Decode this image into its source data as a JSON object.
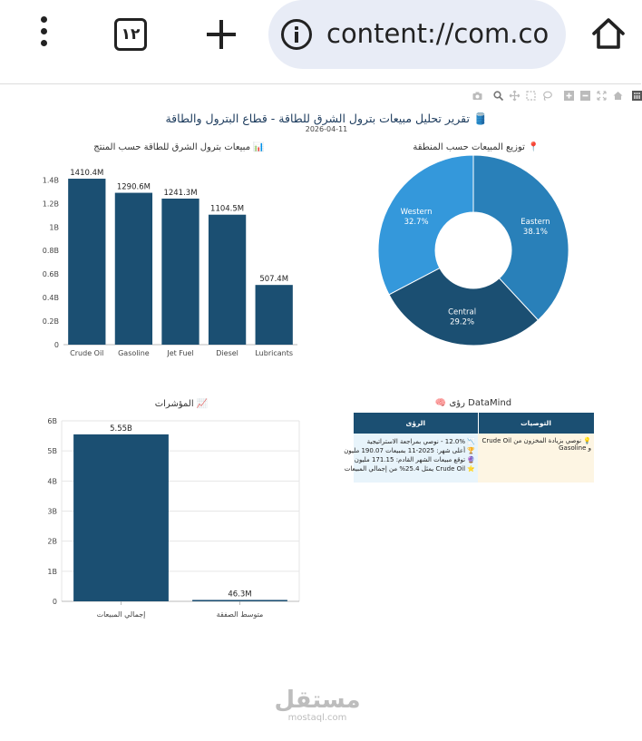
{
  "browser": {
    "tab_count": "١٢",
    "url": "content://com.co"
  },
  "report": {
    "title": "تقرير تحليل مبيعات بترول الشرق للطاقة - قطاع البترول والطاقة 🛢️",
    "date": "2026-04-11"
  },
  "charts": {
    "products": {
      "title": "مبيعات بترول الشرق للطاقة حسب المنتج 📊",
      "bar_color": "#1b4f72"
    },
    "regions": {
      "title": "توزيع المبيعات حسب المنطقة 📍",
      "colors": [
        "#2980b9",
        "#1b4f72",
        "#3498db"
      ]
    },
    "kpis": {
      "title": "المؤشرات 📈",
      "bar_color": "#1b4f72"
    }
  },
  "chart_data": [
    {
      "type": "bar",
      "categories": [
        "Crude Oil",
        "Gasoline",
        "Jet Fuel",
        "Diesel",
        "Lubricants"
      ],
      "values": [
        1410.4,
        1290.6,
        1241.3,
        1104.5,
        507.4
      ],
      "data_labels": [
        "1410.4M",
        "1290.6M",
        "1241.3M",
        "1104.5M",
        "507.4M"
      ],
      "yticks": [
        "0",
        "0.2B",
        "0.4B",
        "0.6B",
        "0.8B",
        "1B",
        "1.2B",
        "1.4B"
      ],
      "ylim": [
        0,
        1480
      ]
    },
    {
      "type": "pie",
      "hole": 0.4,
      "labels": [
        "Eastern",
        "Central",
        "Western"
      ],
      "values": [
        38.1,
        29.2,
        32.7
      ],
      "percent_labels": [
        "38.1%",
        "29.2%",
        "32.7%"
      ]
    },
    {
      "type": "bar",
      "categories": [
        "إجمالي المبيعات",
        "متوسط الصفقة"
      ],
      "values": [
        5550,
        46.3
      ],
      "data_labels": [
        "5.55B",
        "46.3M"
      ],
      "yticks": [
        "0",
        "1B",
        "2B",
        "3B",
        "4B",
        "5B",
        "6B"
      ],
      "ylim": [
        0,
        6000
      ],
      "grid": true
    }
  ],
  "datamind": {
    "title": "🧠 رؤى DataMind",
    "headers": {
      "insights": "الرؤى",
      "recommendations": "التوصيات"
    },
    "insights": [
      "📉 12.0% - نوصي بمراجعة الاستراتيجية",
      "🏆 أعلى شهر: 2025-11 بمبيعات 190.07 مليون",
      "🔮 توقع مبيعات الشهر القادم: 171.15 مليون",
      "⭐ Crude Oil يمثل 25.4% من إجمالي المبيعات"
    ],
    "recommendation": "💡 نوصي بزيادة المخزون من Crude Oil و Gasoline"
  },
  "watermark": {
    "main": "مستقل",
    "sub": "mostaql.com"
  }
}
